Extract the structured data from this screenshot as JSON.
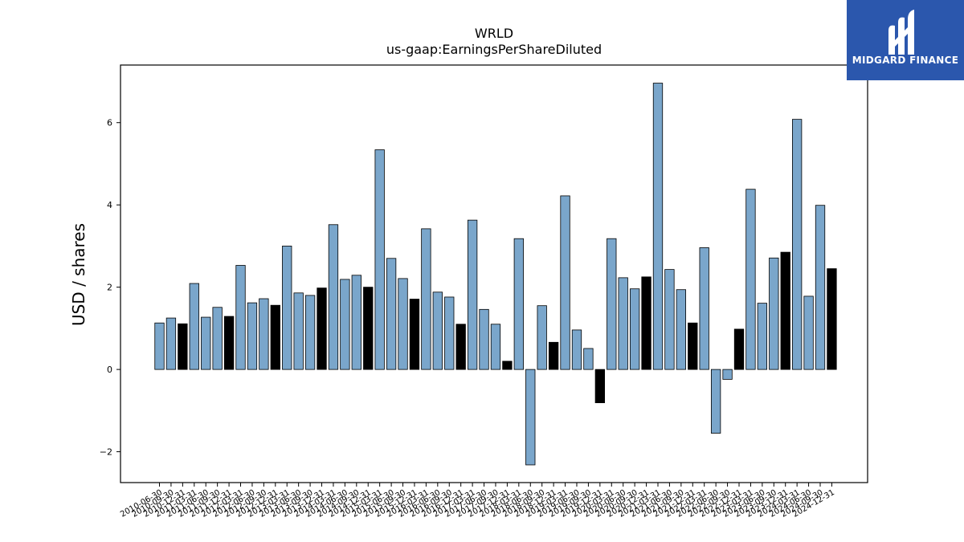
{
  "chart_data": {
    "type": "bar",
    "title": "WRLD",
    "subtitle": "us-gaap:EarningsPerShareDiluted",
    "ylabel": "USD / shares",
    "ylim": [
      -2.75,
      7.4
    ],
    "yticks": [
      -2,
      0,
      2,
      4,
      6
    ],
    "colors": {
      "quarterly": "#7aa6cb",
      "annual": "#000000",
      "edge": "#000000"
    },
    "categories": [
      "2010-06-30",
      "2010-09-30",
      "2010-12-31",
      "2011-03-31",
      "2011-06-30",
      "2011-09-30",
      "2011-12-31",
      "2012-03-31",
      "2012-06-30",
      "2012-09-30",
      "2012-12-31",
      "2013-03-31",
      "2013-06-30",
      "2013-09-30",
      "2013-12-31",
      "2014-03-31",
      "2014-06-30",
      "2014-09-30",
      "2014-12-31",
      "2015-03-31",
      "2015-06-30",
      "2015-09-30",
      "2015-12-31",
      "2016-03-31",
      "2016-06-30",
      "2016-09-30",
      "2016-12-31",
      "2017-03-31",
      "2017-06-30",
      "2017-09-30",
      "2017-12-31",
      "2018-03-31",
      "2018-06-30",
      "2018-09-30",
      "2018-12-31",
      "2019-03-31",
      "2019-06-30",
      "2019-09-30",
      "2019-12-31",
      "2020-03-31",
      "2020-06-30",
      "2020-09-30",
      "2020-12-31",
      "2021-03-31",
      "2021-06-30",
      "2021-09-30",
      "2021-12-31",
      "2022-03-31",
      "2022-06-30",
      "2022-09-30",
      "2022-12-31",
      "2023-03-31",
      "2023-06-30",
      "2023-09-30",
      "2023-12-31",
      "2024-03-31",
      "2024-06-30",
      "2024-09-30",
      "2024-12-31"
    ],
    "values": [
      1.13,
      1.25,
      1.11,
      2.09,
      1.27,
      1.51,
      1.29,
      2.53,
      1.62,
      1.72,
      1.56,
      3.0,
      1.86,
      1.8,
      1.98,
      3.52,
      2.19,
      2.29,
      2.0,
      5.34,
      2.7,
      2.21,
      1.71,
      3.42,
      1.88,
      1.76,
      1.1,
      3.63,
      1.46,
      1.1,
      0.2,
      3.18,
      -2.32,
      1.55,
      0.66,
      4.22,
      0.96,
      0.51,
      -0.81,
      3.18,
      2.23,
      1.96,
      2.25,
      6.96,
      2.43,
      1.94,
      1.13,
      2.96,
      -1.55,
      -0.24,
      0.98,
      4.38,
      1.61,
      2.71,
      2.85,
      6.08,
      1.78,
      3.99,
      2.45
    ],
    "annual_flags": [
      false,
      false,
      true,
      false,
      false,
      false,
      true,
      false,
      false,
      false,
      true,
      false,
      false,
      false,
      true,
      false,
      false,
      false,
      true,
      false,
      false,
      false,
      true,
      false,
      false,
      false,
      true,
      false,
      false,
      false,
      true,
      false,
      false,
      false,
      true,
      false,
      false,
      false,
      true,
      false,
      false,
      false,
      true,
      false,
      false,
      false,
      true,
      false,
      false,
      false,
      true,
      false,
      false,
      false,
      true,
      false,
      false,
      false,
      true
    ]
  },
  "logo": {
    "text": "MIDGARD FINANCE"
  }
}
